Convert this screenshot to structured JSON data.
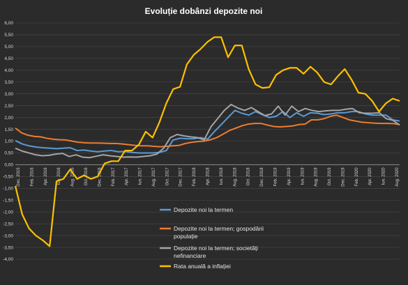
{
  "chart_data": {
    "type": "line",
    "title": "Evoluție  dobânzi  depozite  noi",
    "xlabel": "",
    "ylabel": "",
    "ylim": [
      -4.0,
      6.0
    ],
    "yticks": [
      -4.0,
      -3.5,
      -3.0,
      -2.5,
      -2.0,
      -1.5,
      -1.0,
      -0.5,
      0.0,
      0.5,
      1.0,
      1.5,
      2.0,
      2.5,
      3.0,
      3.5,
      4.0,
      4.5,
      5.0,
      5.5,
      6.0
    ],
    "ytick_labels": [
      "-4,00",
      "-3,50",
      "-3,00",
      "-2,50",
      "-2,00",
      "-1,50",
      "-1,00",
      "-0,50",
      "0,00",
      "0,50",
      "1,00",
      "1,50",
      "2,00",
      "2,50",
      "3,00",
      "3,50",
      "4,00",
      "4,50",
      "5,00",
      "5,50",
      "6,00"
    ],
    "grid": true,
    "legend_position": "bottom-center",
    "x_start": "Dec. 2015",
    "x_end": "Aug. 2020",
    "xtick_labels": [
      "Dec. 2015",
      "Feb. 2016",
      "Apr. 2016",
      "Iun. 2016",
      "Aug. 2016",
      "Oct. 2016",
      "Dec. 2016",
      "Feb. 2017",
      "Apr. 2017",
      "Iun. 2017",
      "Aug. 2017",
      "Oct. 2017",
      "Dec. 2017",
      "Feb. 2018",
      "Apr. 2018",
      "Iun. 2018",
      "Aug. 2018",
      "Oct. 2018",
      "Dec. 2018",
      "Feb. 2019",
      "Apr. 2019",
      "Iun. 2019",
      "Aug. 2019",
      "Oct. 2019",
      "Dec. 2019",
      "Feb. 2020",
      "Apr. 2020",
      "Iun. 2020",
      "Aug. 2020"
    ],
    "series": [
      {
        "name": "Depozite noi la termen",
        "color": "#5b9bd5",
        "values": [
          1.02,
          0.88,
          0.8,
          0.75,
          0.72,
          0.7,
          0.68,
          0.7,
          0.72,
          0.6,
          0.62,
          0.58,
          0.55,
          0.58,
          0.6,
          0.55,
          0.56,
          0.52,
          0.5,
          0.5,
          0.5,
          0.52,
          0.6,
          1.05,
          1.12,
          1.1,
          1.1,
          1.15,
          1.08,
          1.4,
          1.7,
          2.0,
          2.3,
          2.18,
          2.1,
          2.25,
          2.12,
          2.0,
          2.05,
          2.25,
          2.0,
          2.2,
          2.05,
          2.2,
          2.18,
          2.12,
          2.15,
          2.2,
          2.2,
          2.25,
          2.25,
          2.15,
          2.1,
          2.1,
          2.1,
          1.9,
          1.85
        ]
      },
      {
        "name": "Depozite noi la termen; gospodării populație",
        "color": "#ed7d31",
        "values": [
          1.55,
          1.35,
          1.25,
          1.2,
          1.18,
          1.12,
          1.08,
          1.06,
          1.05,
          1.0,
          0.95,
          0.93,
          0.92,
          0.92,
          0.91,
          0.9,
          0.9,
          0.88,
          0.85,
          0.82,
          0.8,
          0.8,
          0.78,
          0.76,
          0.78,
          0.8,
          0.82,
          0.9,
          0.95,
          0.98,
          1.0,
          1.06,
          1.15,
          1.3,
          1.45,
          1.55,
          1.65,
          1.72,
          1.75,
          1.75,
          1.68,
          1.62,
          1.6,
          1.62,
          1.64,
          1.7,
          1.72,
          1.9,
          1.9,
          1.95,
          2.05,
          2.1,
          2.0,
          1.9,
          1.85,
          1.8,
          1.78,
          1.76,
          1.75,
          1.75,
          1.74,
          1.7
        ]
      },
      {
        "name": "Depozite noi la termen; societăți nefinanciare",
        "color": "#a5a5a5",
        "values": [
          0.7,
          0.58,
          0.5,
          0.42,
          0.38,
          0.4,
          0.45,
          0.48,
          0.35,
          0.42,
          0.32,
          0.3,
          0.36,
          0.42,
          0.38,
          0.35,
          0.32,
          0.33,
          0.32,
          0.35,
          0.38,
          0.45,
          0.7,
          1.15,
          1.28,
          1.22,
          1.18,
          1.15,
          1.05,
          1.6,
          1.95,
          2.3,
          2.55,
          2.4,
          2.3,
          2.42,
          2.25,
          2.08,
          2.15,
          2.48,
          2.1,
          2.48,
          2.25,
          2.38,
          2.3,
          2.25,
          2.28,
          2.3,
          2.3,
          2.35,
          2.38,
          2.2,
          2.18,
          2.18,
          2.2,
          1.95,
          1.88,
          1.68
        ]
      },
      {
        "name": "Rata anuală a inflației",
        "color": "#ffc000",
        "values": [
          -0.9,
          -2.1,
          -2.7,
          -3.0,
          -3.2,
          -3.45,
          -0.7,
          -0.6,
          -0.2,
          -0.6,
          -0.45,
          -0.6,
          -0.5,
          0.05,
          0.15,
          0.15,
          0.6,
          0.6,
          0.85,
          1.4,
          1.15,
          1.8,
          2.6,
          3.2,
          3.3,
          4.25,
          4.65,
          4.9,
          5.2,
          5.4,
          5.4,
          4.55,
          5.05,
          5.05,
          4.05,
          3.4,
          3.25,
          3.28,
          3.8,
          4.0,
          4.1,
          4.1,
          3.85,
          4.15,
          3.9,
          3.5,
          3.4,
          3.75,
          4.05,
          3.6,
          3.05,
          3.0,
          2.7,
          2.25,
          2.6,
          2.8,
          2.7
        ]
      }
    ]
  }
}
